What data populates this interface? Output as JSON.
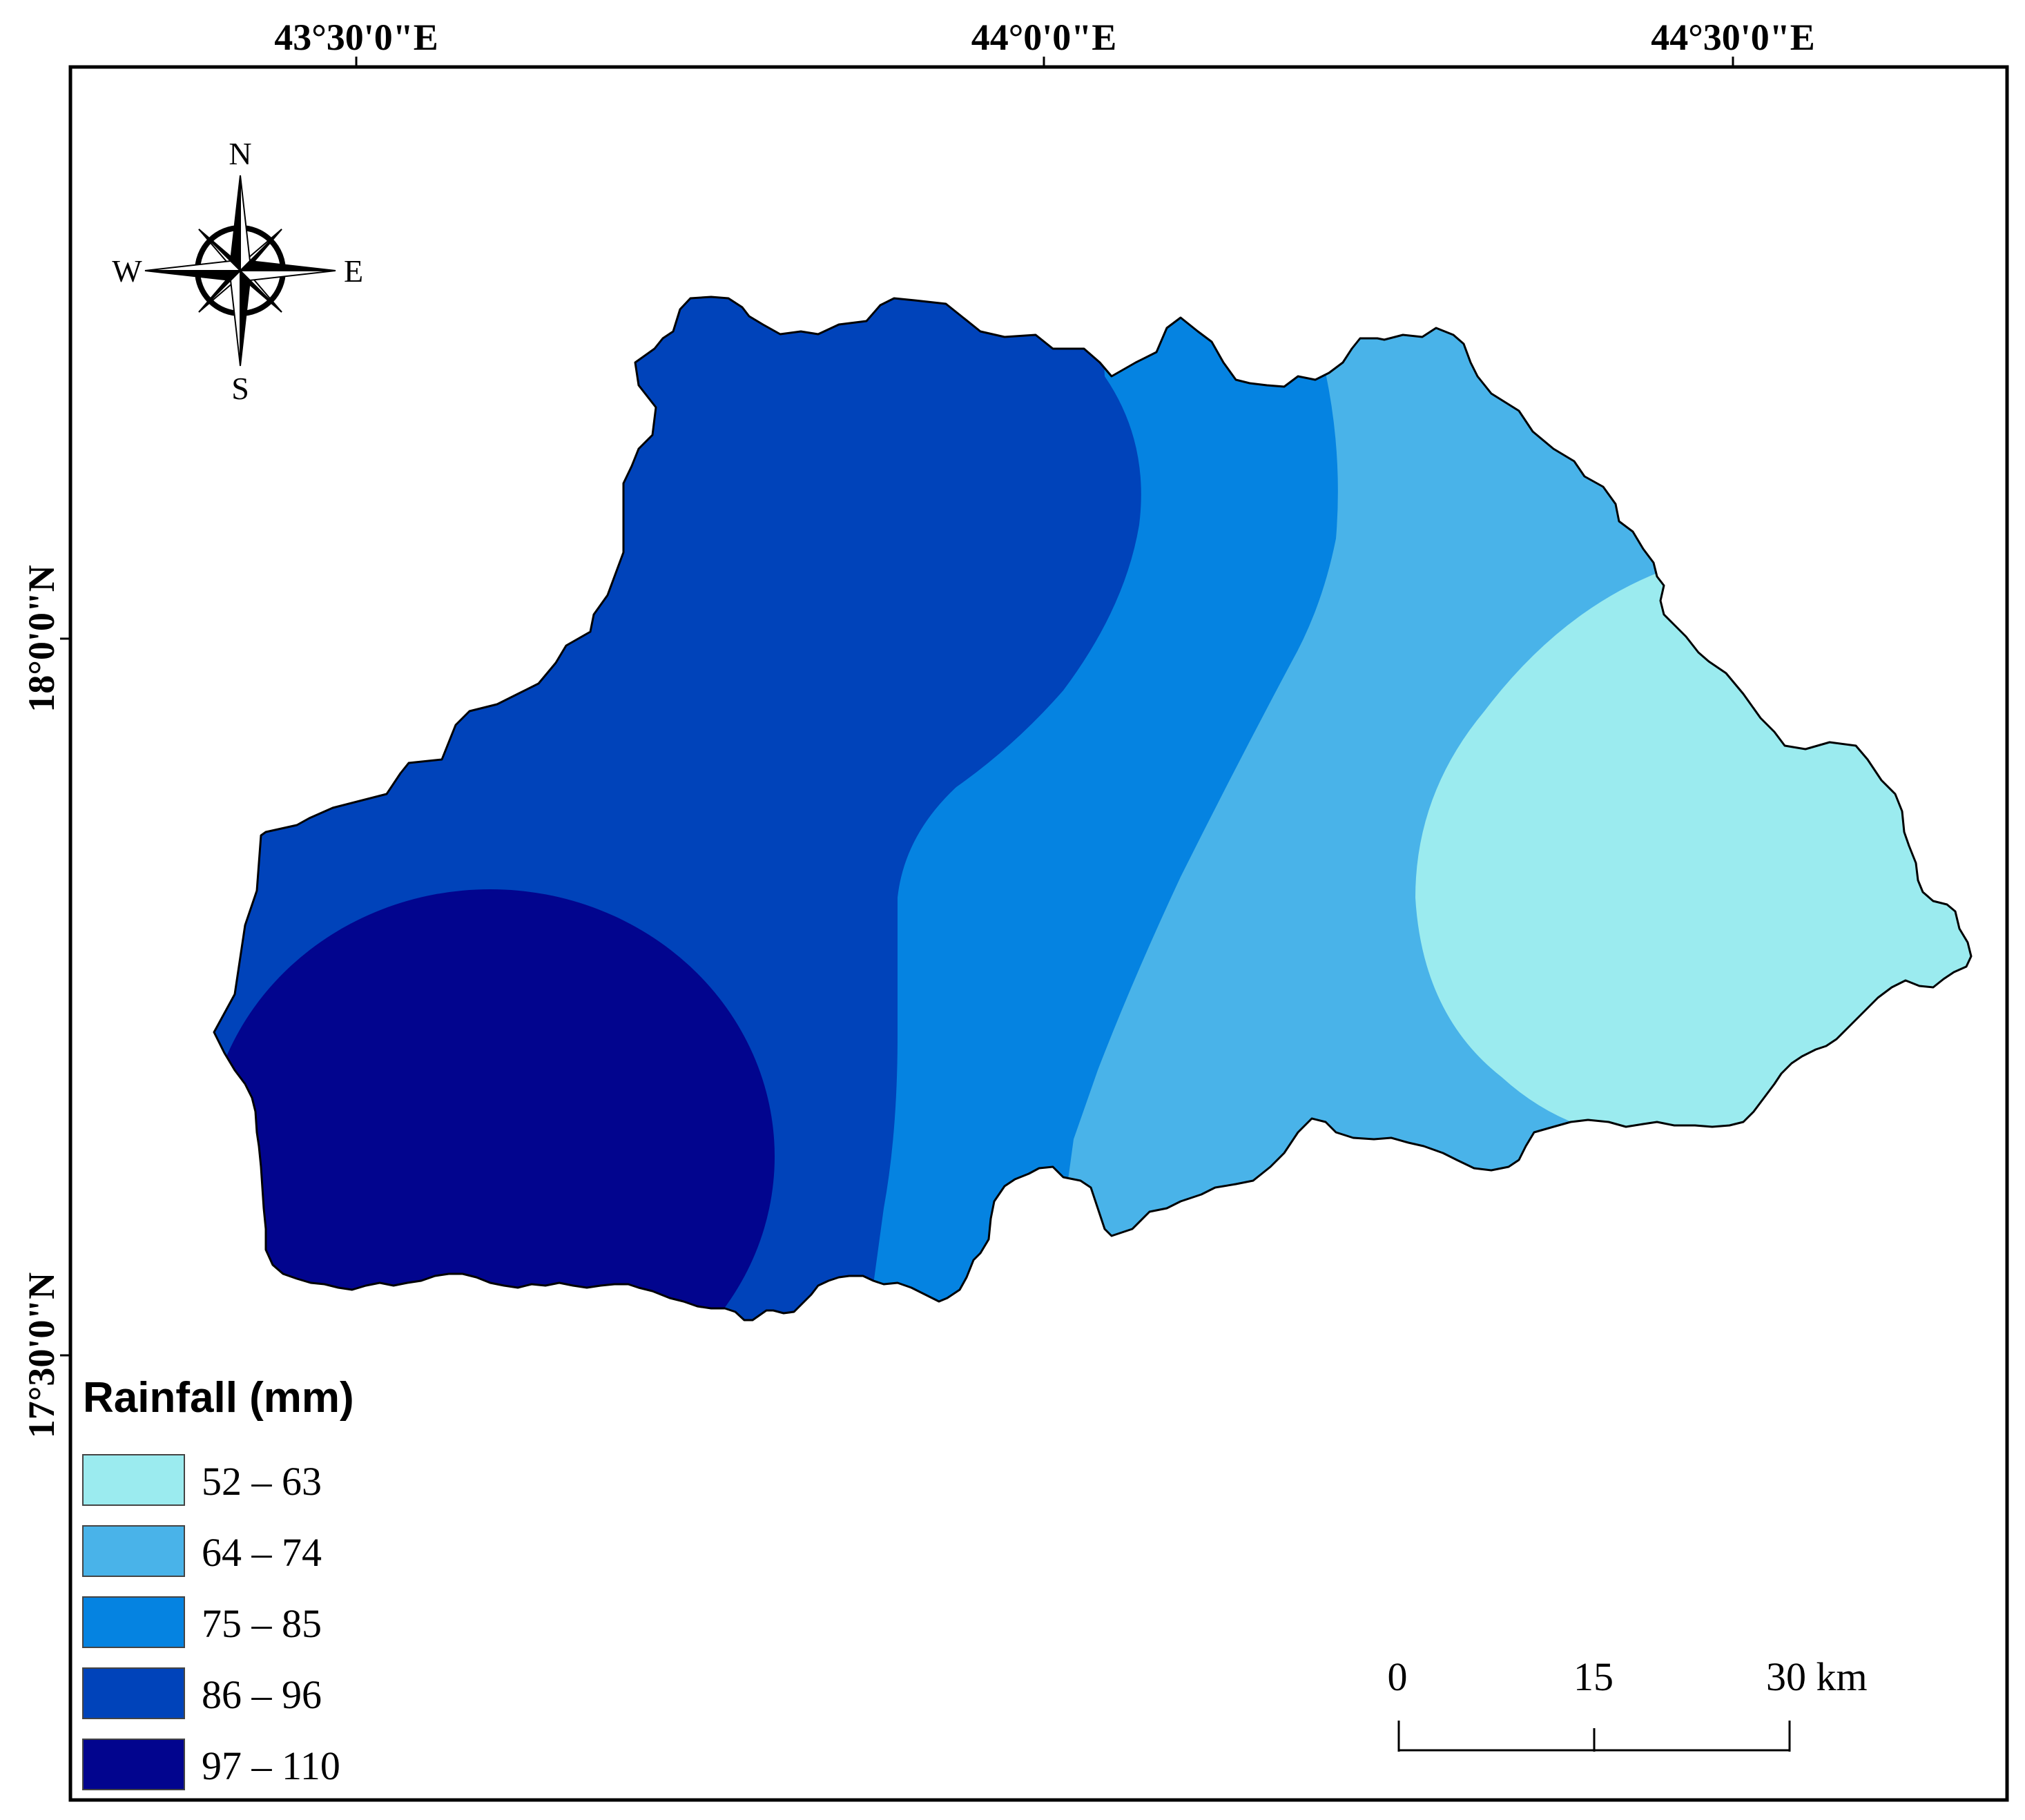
{
  "map": {
    "longitude_labels": [
      "43°30'0\"E",
      "44°0'0\"E",
      "44°30'0\"E"
    ],
    "latitude_labels": [
      "18°0'0\"N",
      "17°30'0\"N"
    ],
    "north_arrow": {
      "icon": "compass-rose-icon",
      "n": "N",
      "s": "S",
      "e": "E",
      "w": "W"
    },
    "legend": {
      "title": "Rainfall (mm)",
      "classes": [
        {
          "label": "52 – 63",
          "color": "#9BEBEF"
        },
        {
          "label": "64 – 74",
          "color": "#49B3E9"
        },
        {
          "label": "75 – 85",
          "color": "#0583E1"
        },
        {
          "label": "86 – 96",
          "color": "#0043BA"
        },
        {
          "label": "97 – 110",
          "color": "#02058E"
        }
      ]
    },
    "scale_bar": {
      "labels": [
        "0",
        "15",
        "30 km"
      ]
    }
  }
}
